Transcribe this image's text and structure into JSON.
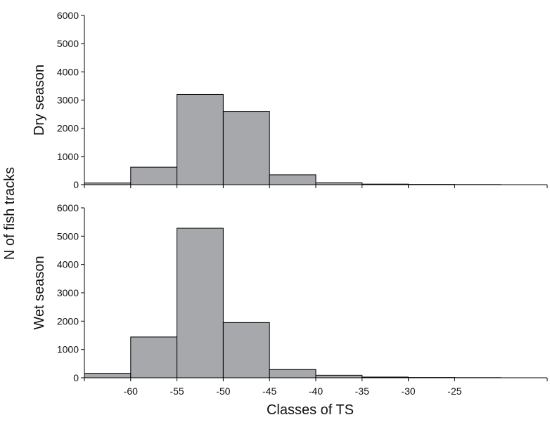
{
  "chart_data": {
    "type": "bar",
    "bin_edges": [
      -65,
      -60,
      -55,
      -50,
      -45,
      -40,
      -35,
      -30,
      -25,
      -20,
      -15
    ],
    "x_tick_labels": [
      "-60",
      "-55",
      "-50",
      "-45",
      "-40",
      "-35",
      "-30",
      "-25"
    ],
    "x_ticks": [
      -60,
      -55,
      -50,
      -45,
      -40,
      -35,
      -30,
      -25
    ],
    "xlabel": "Classes of TS",
    "ylabel": "N of fish tracks",
    "ylim": [
      0,
      6000
    ],
    "y_ticks": [
      0,
      1000,
      2000,
      3000,
      4000,
      5000,
      6000
    ],
    "bar_color": "#a7a8ac",
    "edge_color": "#000000",
    "panels": [
      {
        "name": "Dry season",
        "values": [
          60,
          620,
          3200,
          2600,
          350,
          70,
          20,
          10,
          5,
          0
        ]
      },
      {
        "name": "Wet season",
        "values": [
          160,
          1440,
          5280,
          1950,
          290,
          90,
          25,
          10,
          5,
          0
        ]
      }
    ]
  }
}
